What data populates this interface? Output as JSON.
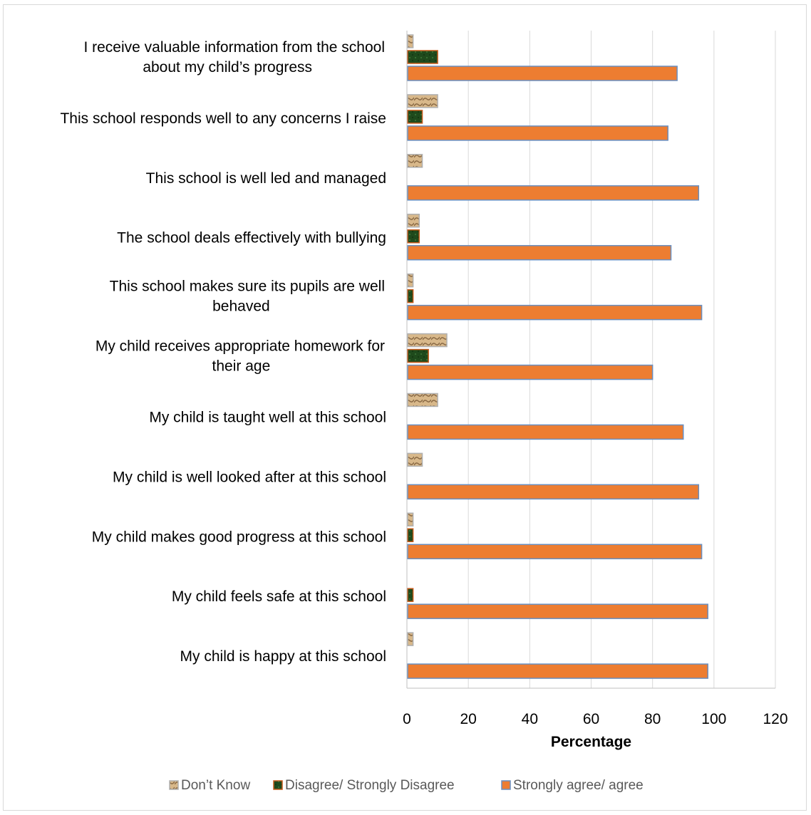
{
  "chart_data": {
    "type": "bar",
    "orientation": "horizontal",
    "title": "",
    "xlabel": "Percentage",
    "ylabel": "",
    "xlim": [
      0,
      120
    ],
    "xticks": [
      0,
      20,
      40,
      60,
      80,
      100,
      120
    ],
    "grid": true,
    "legend_position": "bottom",
    "categories": [
      "I receive valuable information from the school about my child’s progress",
      "This school responds well to any concerns I raise",
      "This school is well led and managed",
      "The school deals effectively with bullying",
      "This school makes sure its pupils are well behaved",
      "My child receives appropriate homework for their age",
      "My child is taught well at this school",
      "My child is well looked after at this school",
      "My child makes good progress at this school",
      "My child feels safe at this school",
      "My child is happy at this school"
    ],
    "series": [
      {
        "name": "Don’t Know",
        "color": "#d8b88a",
        "values": [
          2,
          10,
          5,
          4,
          2,
          13,
          10,
          5,
          2,
          0,
          2
        ]
      },
      {
        "name": "Disagree/ Strongly Disagree",
        "color": "#1f4a1c",
        "values": [
          10,
          5,
          0,
          4,
          2,
          7,
          0,
          0,
          2,
          2,
          0
        ]
      },
      {
        "name": "Strongly agree/ agree",
        "color": "#ed7d31",
        "values": [
          88,
          85,
          95,
          86,
          96,
          80,
          90,
          95,
          96,
          98,
          98
        ]
      }
    ]
  }
}
